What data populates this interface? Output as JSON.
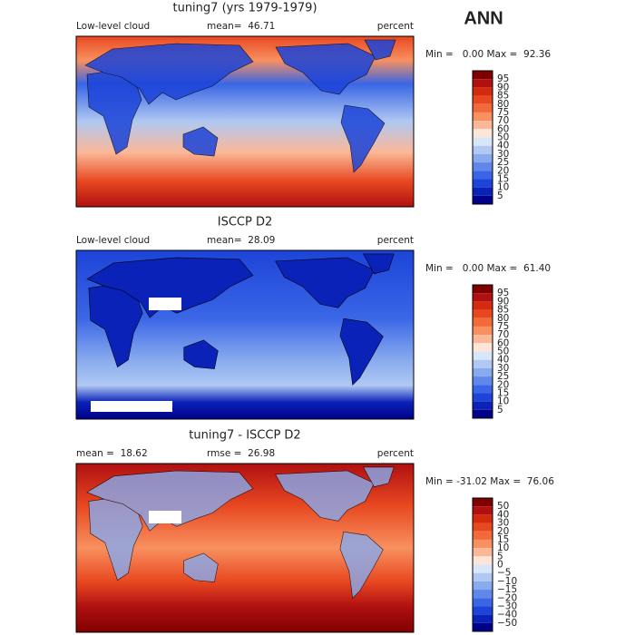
{
  "figure_label": "ANN",
  "panels": [
    {
      "title": "tuning7 (yrs 1979-1979)",
      "header": [
        "Low-level cloud",
        "mean=  46.71",
        "percent"
      ],
      "range_text": "Min =   0.00 Max =  92.36",
      "colorbar": {
        "labels": [
          "95",
          "90",
          "85",
          "80",
          "75",
          "70",
          "60",
          "50",
          "40",
          "30",
          "25",
          "20",
          "15",
          "10",
          "5"
        ],
        "colors": [
          "#800000",
          "#b01010",
          "#d42a10",
          "#e84820",
          "#f26a3a",
          "#f89060",
          "#fbb898",
          "#fde6d8",
          "#d8e6fa",
          "#b0c8f2",
          "#88aaee",
          "#5f88ea",
          "#3a66e6",
          "#1c44d8",
          "#0a22b8",
          "#000088"
        ]
      }
    },
    {
      "title": "ISCCP D2",
      "header": [
        "Low-level cloud",
        "mean=  28.09",
        "percent"
      ],
      "range_text": "Min =   0.00 Max =  61.40",
      "colorbar": {
        "labels": [
          "95",
          "90",
          "85",
          "80",
          "75",
          "70",
          "60",
          "50",
          "40",
          "30",
          "25",
          "20",
          "15",
          "10",
          "5"
        ],
        "colors": [
          "#800000",
          "#b01010",
          "#d42a10",
          "#e84820",
          "#f26a3a",
          "#f89060",
          "#fbb898",
          "#fde6d8",
          "#d8e6fa",
          "#b0c8f2",
          "#88aaee",
          "#5f88ea",
          "#3a66e6",
          "#1c44d8",
          "#0a22b8",
          "#000088"
        ]
      }
    },
    {
      "title": "tuning7 - ISCCP D2",
      "header": [
        "mean =  18.62",
        "rmse =  26.98",
        "percent"
      ],
      "range_text": "Min = -31.02 Max =  76.06",
      "colorbar": {
        "labels": [
          "50",
          "40",
          "30",
          "20",
          "15",
          "10",
          "5",
          "0",
          "−5",
          "−10",
          "−15",
          "−20",
          "−30",
          "−40",
          "−50"
        ],
        "colors": [
          "#800000",
          "#b01010",
          "#d42a10",
          "#e84820",
          "#f26a3a",
          "#f89060",
          "#fbb898",
          "#fde6d8",
          "#d8e6fa",
          "#b0c8f2",
          "#88aaee",
          "#5f88ea",
          "#3a66e6",
          "#1c44d8",
          "#0a22b8",
          "#000088"
        ]
      }
    }
  ]
}
